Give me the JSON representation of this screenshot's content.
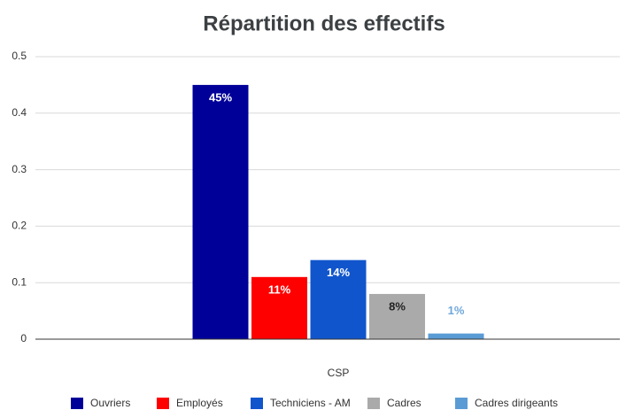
{
  "chart_data": {
    "type": "bar",
    "title": "Répartition des effectifs",
    "x_label": "CSP",
    "categories": [
      "CSP"
    ],
    "series": [
      {
        "name": "Ouvriers",
        "color": "#000099",
        "values": [
          0.45
        ],
        "value_labels": [
          "45%"
        ]
      },
      {
        "name": "Employés",
        "color": "#ff0000",
        "values": [
          0.11
        ],
        "value_labels": [
          "11%"
        ]
      },
      {
        "name": "Techniciens - AM",
        "color": "#1155cc",
        "values": [
          0.14
        ],
        "value_labels": [
          "14%"
        ]
      },
      {
        "name": "Cadres",
        "color": "#aaaaaa",
        "values": [
          0.08
        ],
        "value_labels": [
          "8%"
        ]
      },
      {
        "name": "Cadres dirigeants",
        "color": "#5b9bd5",
        "values": [
          0.01
        ],
        "value_labels": [
          "1%"
        ]
      }
    ],
    "ylim": [
      0,
      0.5
    ],
    "yticks": [
      0,
      0.1,
      0.2,
      0.3,
      0.4,
      0.5
    ],
    "grid": true,
    "legend": "bottom"
  }
}
